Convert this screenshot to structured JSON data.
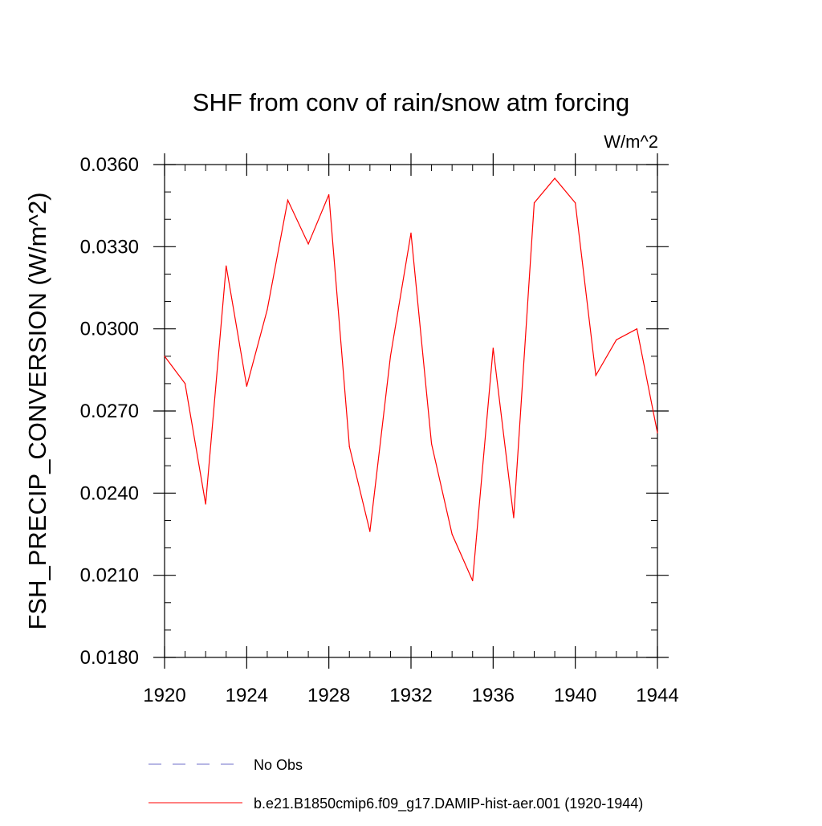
{
  "chart_data": {
    "type": "line",
    "title": "SHF from conv of rain/snow atm forcing",
    "units_label": "W/m^2",
    "xlabel": "",
    "ylabel": "FSH_PRECIP_CONVERSION  (W/m^2)",
    "xlim": [
      1920,
      1944
    ],
    "ylim": [
      0.018,
      0.036
    ],
    "xticks": [
      1920,
      1924,
      1928,
      1932,
      1936,
      1940,
      1944
    ],
    "xtick_labels": [
      "1920",
      "1924",
      "1928",
      "1932",
      "1936",
      "1940",
      "1944"
    ],
    "yticks": [
      0.018,
      0.021,
      0.024,
      0.027,
      0.03,
      0.033,
      0.036
    ],
    "ytick_labels": [
      "0.0180",
      "0.0210",
      "0.0240",
      "0.0270",
      "0.0300",
      "0.0330",
      "0.0360"
    ],
    "y_minor_step": 0.001,
    "x_minor_step": 1,
    "grid": false,
    "legend_position": "bottom",
    "series": [
      {
        "name": "b.e21.B1850cmip6.f09_g17.DAMIP-hist-aer.001 (1920-1944)",
        "color": "#ff0000",
        "style": "solid",
        "x": [
          1920,
          1921,
          1922,
          1923,
          1924,
          1925,
          1926,
          1927,
          1928,
          1929,
          1930,
          1931,
          1932,
          1933,
          1934,
          1935,
          1936,
          1937,
          1938,
          1939,
          1940,
          1941,
          1942,
          1943,
          1944
        ],
        "y": [
          0.029,
          0.028,
          0.0236,
          0.0323,
          0.0279,
          0.0307,
          0.0347,
          0.0331,
          0.0349,
          0.0257,
          0.0226,
          0.029,
          0.0335,
          0.0258,
          0.0225,
          0.0208,
          0.0293,
          0.0231,
          0.0346,
          0.0355,
          0.0346,
          0.0283,
          0.0296,
          0.03,
          0.0262
        ]
      }
    ],
    "legend": [
      {
        "label": "No Obs",
        "color": "#6f6fc8",
        "style": "dashed"
      },
      {
        "label": "b.e21.B1850cmip6.f09_g17.DAMIP-hist-aer.001 (1920-1944)",
        "color": "#ff0000",
        "style": "solid"
      }
    ]
  }
}
